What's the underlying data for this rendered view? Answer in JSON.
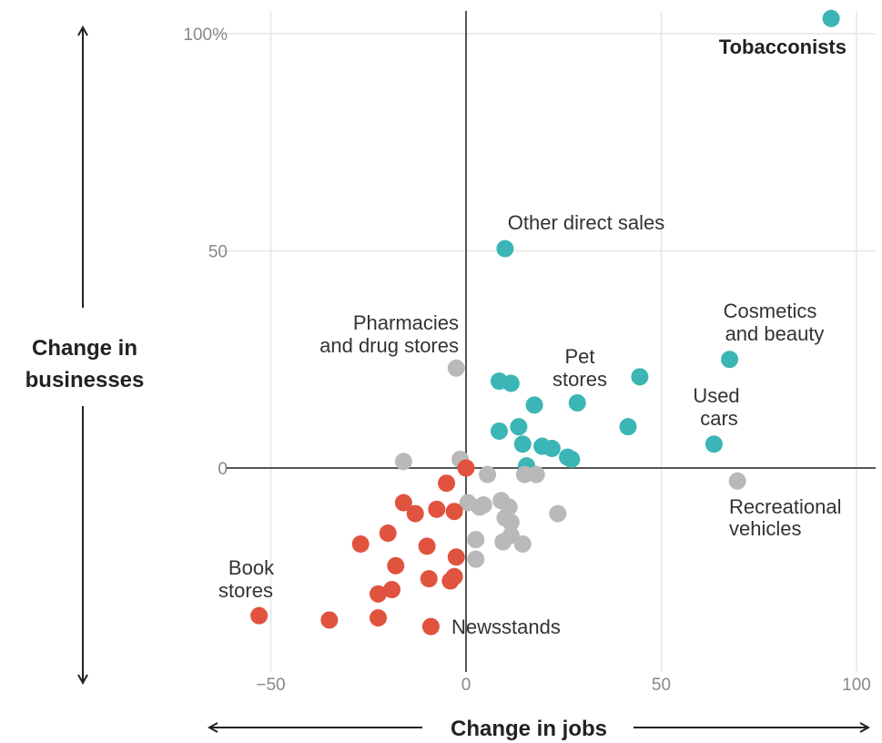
{
  "colors": {
    "growth": "#3bb5b5",
    "neutral": "#b9b9b9",
    "decline": "#e0533f",
    "grid": "#e6e6e6",
    "zero_axis": "#555555",
    "arrow": "#222222"
  },
  "chart_data": {
    "type": "scatter",
    "xlabel": "Change in jobs",
    "ylabel": "Change in businesses",
    "xlim": [
      -55,
      102
    ],
    "ylim": [
      -50,
      106
    ],
    "x_ticks": [
      {
        "value": -50,
        "label": "−50"
      },
      {
        "value": 0,
        "label": "0"
      },
      {
        "value": 50,
        "label": "50"
      },
      {
        "value": 100,
        "label": "100"
      }
    ],
    "y_ticks": [
      {
        "value": 0,
        "label": "0"
      },
      {
        "value": 50,
        "label": "50"
      },
      {
        "value": 100,
        "label": "100%"
      }
    ],
    "grid": true,
    "points": [
      {
        "x": 93.5,
        "y": 103.5,
        "group": "growth",
        "label": "Tobacconists"
      },
      {
        "x": 10,
        "y": 50.5,
        "group": "growth",
        "label": "Other direct sales"
      },
      {
        "x": 67.5,
        "y": 25,
        "group": "growth",
        "label": "Cosmetics and beauty"
      },
      {
        "x": 63.5,
        "y": 5.5,
        "group": "growth",
        "label": "Used cars"
      },
      {
        "x": 28.5,
        "y": 15,
        "group": "growth",
        "label": "Pet stores"
      },
      {
        "x": 44.5,
        "y": 21,
        "group": "growth"
      },
      {
        "x": 41.5,
        "y": 9.5,
        "group": "growth"
      },
      {
        "x": 8.5,
        "y": 20,
        "group": "growth"
      },
      {
        "x": 11.5,
        "y": 19.5,
        "group": "growth"
      },
      {
        "x": 17.5,
        "y": 14.5,
        "group": "growth"
      },
      {
        "x": 8.5,
        "y": 8.5,
        "group": "growth"
      },
      {
        "x": 13.5,
        "y": 9.5,
        "group": "growth"
      },
      {
        "x": 14.5,
        "y": 5.5,
        "group": "growth"
      },
      {
        "x": 19.5,
        "y": 5,
        "group": "growth"
      },
      {
        "x": 22,
        "y": 4.5,
        "group": "growth"
      },
      {
        "x": 26,
        "y": 2.5,
        "group": "growth"
      },
      {
        "x": 27,
        "y": 2,
        "group": "growth"
      },
      {
        "x": 15.5,
        "y": 0.5,
        "group": "growth"
      },
      {
        "x": -2.5,
        "y": 23,
        "group": "neutral",
        "label": "Pharmacies and drug stores"
      },
      {
        "x": 69.5,
        "y": -3,
        "group": "neutral",
        "label": "Recreational vehicles"
      },
      {
        "x": -16,
        "y": 1.5,
        "group": "neutral"
      },
      {
        "x": -1.5,
        "y": 2,
        "group": "neutral"
      },
      {
        "x": 5.5,
        "y": -1.5,
        "group": "neutral"
      },
      {
        "x": 15,
        "y": -1.5,
        "group": "neutral"
      },
      {
        "x": 18,
        "y": -1.5,
        "group": "neutral"
      },
      {
        "x": 0.5,
        "y": -8,
        "group": "neutral"
      },
      {
        "x": 3.5,
        "y": -9,
        "group": "neutral"
      },
      {
        "x": 4.5,
        "y": -8.5,
        "group": "neutral"
      },
      {
        "x": 9,
        "y": -7.5,
        "group": "neutral"
      },
      {
        "x": 11,
        "y": -9,
        "group": "neutral"
      },
      {
        "x": 10,
        "y": -11.5,
        "group": "neutral"
      },
      {
        "x": 11.5,
        "y": -12.5,
        "group": "neutral"
      },
      {
        "x": 23.5,
        "y": -10.5,
        "group": "neutral"
      },
      {
        "x": 11.5,
        "y": -15.5,
        "group": "neutral"
      },
      {
        "x": 2.5,
        "y": -16.5,
        "group": "neutral"
      },
      {
        "x": 9.5,
        "y": -17,
        "group": "neutral"
      },
      {
        "x": 14.5,
        "y": -17.5,
        "group": "neutral"
      },
      {
        "x": 2.5,
        "y": -21,
        "group": "neutral"
      },
      {
        "x": 0,
        "y": 0,
        "group": "decline"
      },
      {
        "x": -5,
        "y": -3.5,
        "group": "decline"
      },
      {
        "x": -16,
        "y": -8,
        "group": "decline"
      },
      {
        "x": -13,
        "y": -10.5,
        "group": "decline"
      },
      {
        "x": -7.5,
        "y": -9.5,
        "group": "decline"
      },
      {
        "x": -3,
        "y": -10,
        "group": "decline"
      },
      {
        "x": -20,
        "y": -15,
        "group": "decline"
      },
      {
        "x": -27,
        "y": -17.5,
        "group": "decline"
      },
      {
        "x": -10,
        "y": -18,
        "group": "decline"
      },
      {
        "x": -2.5,
        "y": -20.5,
        "group": "decline"
      },
      {
        "x": -18,
        "y": -22.5,
        "group": "decline"
      },
      {
        "x": -9.5,
        "y": -25.5,
        "group": "decline"
      },
      {
        "x": -3,
        "y": -25,
        "group": "decline"
      },
      {
        "x": -4,
        "y": -26,
        "group": "decline"
      },
      {
        "x": -19,
        "y": -28,
        "group": "decline"
      },
      {
        "x": -22.5,
        "y": -29,
        "group": "decline"
      },
      {
        "x": -53,
        "y": -34,
        "group": "decline",
        "label": "Book stores"
      },
      {
        "x": -35,
        "y": -35,
        "group": "decline"
      },
      {
        "x": -22.5,
        "y": -34.5,
        "group": "decline"
      },
      {
        "x": -9,
        "y": -36.5,
        "group": "decline",
        "label": "Newsstands"
      }
    ],
    "annotations": [
      {
        "text": "Tobacconists",
        "bold": true
      },
      {
        "text": "Other direct sales"
      },
      {
        "text": "Pharmacies"
      },
      {
        "text": "and drug stores"
      },
      {
        "text": "Pet"
      },
      {
        "text": "stores"
      },
      {
        "text": "Cosmetics"
      },
      {
        "text": "and beauty"
      },
      {
        "text": "Used"
      },
      {
        "text": "cars"
      },
      {
        "text": "Recreational"
      },
      {
        "text": "vehicles"
      },
      {
        "text": "Book"
      },
      {
        "text": "stores"
      },
      {
        "text": "Newsstands"
      }
    ],
    "ylabel_lines": [
      "Change in",
      "businesses"
    ]
  }
}
